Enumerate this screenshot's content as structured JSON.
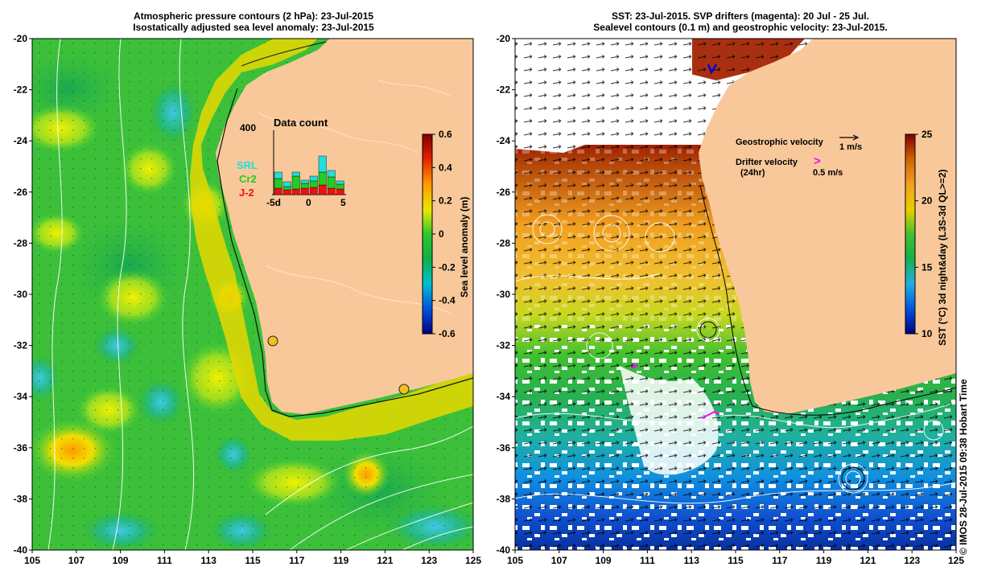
{
  "left_panel": {
    "title_line1": "Atmospheric pressure contours (2 hPa): 23-Jul-2015",
    "title_line2": "Isostatically adjusted sea level anomaly: 23-Jul-2015",
    "colorbar": {
      "label": "Sea level anomaly (m)",
      "ticks": [
        "0.6",
        "0.4",
        "0.2",
        "0",
        "-0.2",
        "-0.4",
        "-0.6"
      ]
    },
    "inset": {
      "title": "Data count",
      "ymax_label": "400",
      "xticks": [
        "-5d",
        "0",
        "5"
      ],
      "legend": [
        {
          "name": "SRL",
          "color": "#22dddd"
        },
        {
          "name": "Cr2",
          "color": "#22cc22"
        },
        {
          "name": "J-2",
          "color": "#ee1111"
        }
      ],
      "bars": [
        {
          "j2": 40,
          "cr2": 60,
          "srl": 40
        },
        {
          "j2": 30,
          "cr2": 20,
          "srl": 30
        },
        {
          "j2": 35,
          "cr2": 80,
          "srl": 25
        },
        {
          "j2": 40,
          "cr2": 30,
          "srl": 20
        },
        {
          "j2": 45,
          "cr2": 40,
          "srl": 30
        },
        {
          "j2": 60,
          "cr2": 80,
          "srl": 100
        },
        {
          "j2": 40,
          "cr2": 70,
          "srl": 40
        },
        {
          "j2": 35,
          "cr2": 30,
          "srl": 20
        }
      ]
    }
  },
  "right_panel": {
    "title_line1": "SST: 23-Jul-2015. SVP drifters (magenta): 20 Jul - 25 Jul.",
    "title_line2": "Sealevel contours (0.1 m) and geostrophic velocity: 23-Jul-2015.",
    "colorbar": {
      "label": "SST (°C) 3d night&day (L3S-3d QL>=2)",
      "ticks": [
        "25",
        "20",
        "15",
        "10"
      ]
    },
    "legend": {
      "geostrophic_label": "Geostrophic velocity",
      "geostrophic_scale": "1 m/s",
      "drifter_label_line1": "Drifter velocity",
      "drifter_label_line2": "(24hr)",
      "drifter_scale": "0.5 m/s",
      "drifter_glyph": ">"
    }
  },
  "axes": {
    "x_ticks": [
      "105",
      "107",
      "109",
      "111",
      "113",
      "115",
      "117",
      "119",
      "121",
      "123",
      "125"
    ],
    "y_ticks": [
      "-20",
      "-22",
      "-24",
      "-26",
      "-28",
      "-30",
      "-32",
      "-34",
      "-36",
      "-38",
      "-40"
    ]
  },
  "credit": "© IMOS 28-Jul-2015 09:38 Hobart Time",
  "colors": {
    "land": "#f9c89a",
    "sla_scale": [
      "#000080",
      "#0050e0",
      "#00c0d0",
      "#10b040",
      "#2ec82e",
      "#e8e800",
      "#ff9a00",
      "#e02000",
      "#800000"
    ],
    "sst_scale": [
      "#000080",
      "#0050e0",
      "#20b0e0",
      "#18b048",
      "#40c030",
      "#e8d000",
      "#f0a020",
      "#d06000",
      "#800000"
    ]
  }
}
